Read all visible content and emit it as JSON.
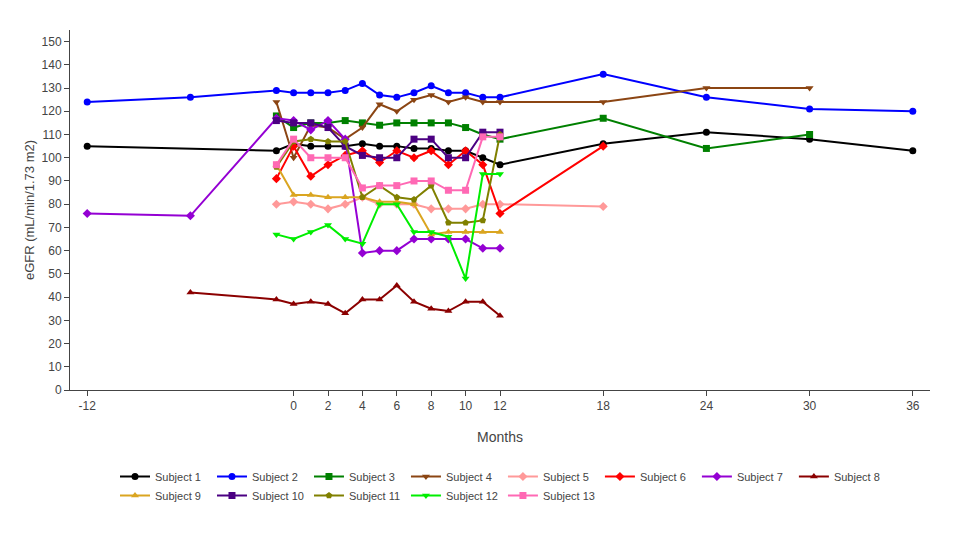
{
  "chart_data": {
    "type": "line",
    "xlabel": "Months",
    "ylabel": "eGFR (mL/min/1.73 m2)",
    "xlim": [
      -13,
      37
    ],
    "xticks": [
      -12,
      0,
      2,
      4,
      6,
      8,
      10,
      12,
      18,
      24,
      30,
      36
    ],
    "ylim": [
      0,
      155
    ],
    "yticks": [
      0,
      10,
      20,
      30,
      40,
      50,
      60,
      70,
      80,
      90,
      100,
      110,
      120,
      130,
      140,
      150
    ],
    "grid": false,
    "legend": "bottom",
    "series": [
      {
        "name": "Subject 1",
        "color": "#000000",
        "marker": "circle",
        "x": [
          -12,
          -1,
          0,
          1,
          2,
          3,
          4,
          5,
          6,
          7,
          8,
          9,
          10,
          11,
          12,
          18,
          24,
          30,
          36
        ],
        "values": [
          105,
          103,
          106,
          105,
          105,
          105,
          106,
          105,
          105,
          104,
          104,
          103,
          103,
          100,
          97,
          106,
          111,
          108,
          103
        ]
      },
      {
        "name": "Subject 2",
        "color": "#0000FF",
        "marker": "circle",
        "x": [
          -12,
          -6,
          -1,
          0,
          1,
          2,
          3,
          4,
          5,
          6,
          7,
          8,
          9,
          10,
          11,
          12,
          18,
          24,
          30,
          36
        ],
        "values": [
          124,
          126,
          129,
          128,
          128,
          128,
          129,
          132,
          127,
          126,
          128,
          131,
          128,
          128,
          126,
          126,
          136,
          126,
          121,
          120
        ]
      },
      {
        "name": "Subject 3",
        "color": "#008000",
        "marker": "square",
        "x": [
          -1,
          0,
          1,
          2,
          3,
          4,
          5,
          6,
          7,
          8,
          9,
          10,
          11,
          12,
          18,
          24,
          30
        ],
        "values": [
          118,
          113,
          115,
          115,
          116,
          115,
          114,
          115,
          115,
          115,
          115,
          113,
          110,
          108,
          117,
          104,
          110
        ]
      },
      {
        "name": "Subject 4",
        "color": "#8B4513",
        "marker": "triangle-down",
        "x": [
          -1,
          0,
          1,
          2,
          3,
          4,
          5,
          6,
          7,
          8,
          9,
          10,
          11,
          12,
          18,
          24,
          30
        ],
        "values": [
          124,
          100,
          114,
          113,
          108,
          113,
          123,
          120,
          125,
          127,
          124,
          126,
          124,
          124,
          124,
          130,
          130
        ]
      },
      {
        "name": "Subject 5",
        "color": "#FF9999",
        "marker": "diamond",
        "x": [
          -1,
          0,
          1,
          2,
          3,
          4,
          5,
          6,
          7,
          8,
          9,
          10,
          11,
          12,
          18
        ],
        "values": [
          80,
          81,
          80,
          78,
          80,
          83,
          80,
          80,
          80,
          78,
          78,
          78,
          80,
          80,
          79
        ]
      },
      {
        "name": "Subject 6",
        "color": "#FF0000",
        "marker": "diamond",
        "x": [
          -1,
          0,
          1,
          2,
          3,
          4,
          5,
          6,
          7,
          8,
          9,
          10,
          11,
          12,
          18
        ],
        "values": [
          91,
          105,
          92,
          97,
          101,
          103,
          98,
          103,
          100,
          103,
          97,
          103,
          97,
          76,
          105
        ]
      },
      {
        "name": "Subject 7",
        "color": "#9400D3",
        "marker": "diamond",
        "x": [
          -12,
          -6,
          -1,
          0,
          1,
          2,
          3,
          4,
          5,
          6,
          7,
          8,
          9,
          10,
          11,
          12
        ],
        "values": [
          76,
          75,
          117,
          116,
          112,
          116,
          108,
          59,
          60,
          60,
          65,
          65,
          65,
          65,
          61,
          61
        ]
      },
      {
        "name": "Subject 8",
        "color": "#8B0000",
        "marker": "triangle-up",
        "x": [
          -6,
          -1,
          0,
          1,
          2,
          3,
          4,
          5,
          6,
          7,
          8,
          9,
          10,
          11,
          12
        ],
        "values": [
          42,
          39,
          37,
          38,
          37,
          33,
          39,
          39,
          45,
          38,
          35,
          34,
          38,
          38,
          32
        ]
      },
      {
        "name": "Subject 9",
        "color": "#DAA520",
        "marker": "triangle-up",
        "x": [
          -1,
          0,
          1,
          2,
          3,
          4,
          5,
          6,
          7,
          8,
          9,
          10,
          11,
          12
        ],
        "values": [
          97,
          84,
          84,
          83,
          83,
          83,
          81,
          81,
          80,
          67,
          68,
          68,
          68,
          68
        ]
      },
      {
        "name": "Subject 10",
        "color": "#4B0082",
        "marker": "square",
        "x": [
          -1,
          0,
          1,
          2,
          3,
          4,
          5,
          6,
          7,
          8,
          9,
          10,
          11,
          12
        ],
        "values": [
          116,
          115,
          115,
          113,
          105,
          101,
          100,
          100,
          108,
          108,
          100,
          100,
          111,
          111
        ]
      },
      {
        "name": "Subject 11",
        "color": "#808000",
        "marker": "pentagon",
        "x": [
          -1,
          0,
          1,
          2,
          3,
          4,
          5,
          6,
          7,
          8,
          9,
          10,
          11,
          12
        ],
        "values": [
          96,
          107,
          108,
          107,
          107,
          83,
          88,
          83,
          82,
          88,
          72,
          72,
          73,
          110
        ]
      },
      {
        "name": "Subject 12",
        "color": "#00EE00",
        "marker": "triangle-down",
        "x": [
          -1,
          0,
          1,
          2,
          3,
          4,
          5,
          6,
          7,
          8,
          9,
          10,
          11,
          12
        ],
        "values": [
          67,
          65,
          68,
          71,
          65,
          63,
          80,
          80,
          68,
          68,
          66,
          48,
          93,
          93
        ]
      },
      {
        "name": "Subject 13",
        "color": "#FF69B4",
        "marker": "square",
        "x": [
          -1,
          0,
          1,
          2,
          3,
          4,
          5,
          6,
          7,
          8,
          9,
          10,
          11,
          12
        ],
        "values": [
          97,
          108,
          100,
          100,
          100,
          87,
          88,
          88,
          90,
          90,
          86,
          86,
          109,
          109
        ]
      }
    ]
  }
}
